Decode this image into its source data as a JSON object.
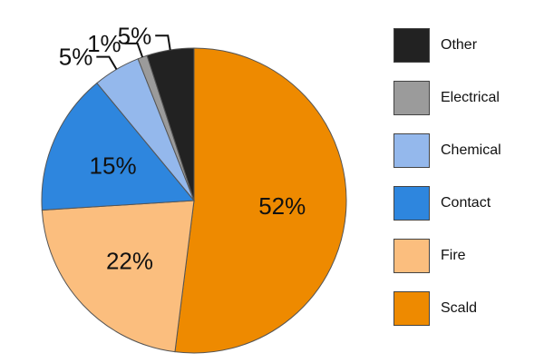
{
  "chart_data": {
    "type": "pie",
    "title": "",
    "categories": [
      "Scald",
      "Fire",
      "Contact",
      "Chemical",
      "Electrical",
      "Other"
    ],
    "values": [
      52,
      22,
      15,
      5,
      1,
      5
    ],
    "labels": [
      "52%",
      "22%",
      "15%",
      "5%",
      "1%",
      "5%"
    ],
    "colors": [
      "#ee8a00",
      "#fbbe7e",
      "#2e86de",
      "#94b8ec",
      "#9b9b9b",
      "#222222"
    ],
    "start_angle_deg": 0,
    "direction": "clockwise",
    "legend": {
      "position": "right",
      "order": [
        "Other",
        "Electrical",
        "Chemical",
        "Contact",
        "Fire",
        "Scald"
      ]
    }
  }
}
